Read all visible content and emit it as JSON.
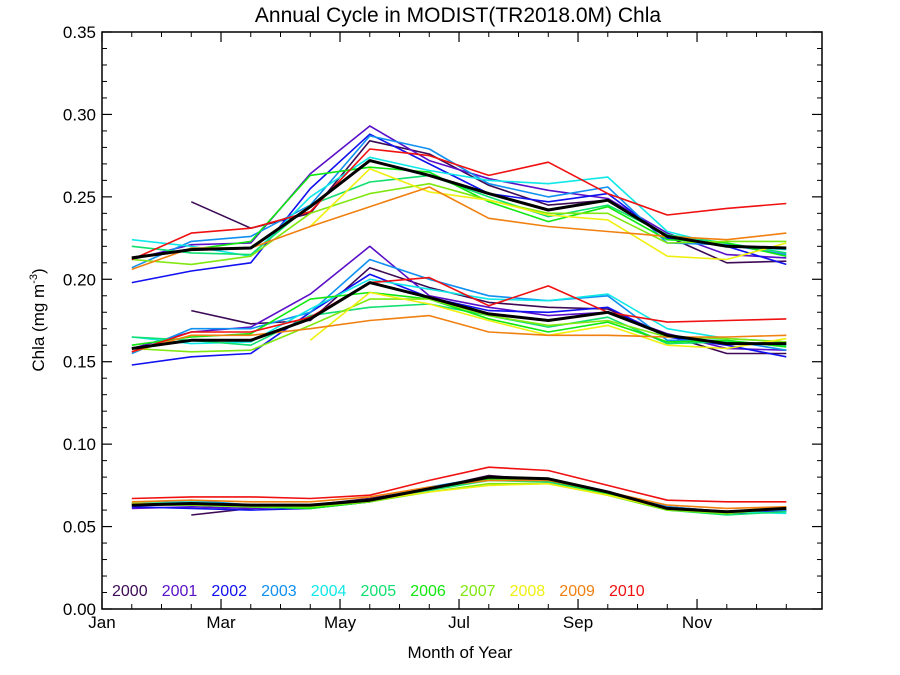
{
  "chart_data": {
    "type": "line",
    "title": "Annual Cycle in MODIST(TR2018.0M) Chla",
    "xlabel": "Month of Year",
    "ylabel": "Chla (mg m⁻³)",
    "xlim": [
      0.5,
      12.6
    ],
    "ylim": [
      0,
      0.35
    ],
    "grid": false,
    "x_ticks": [
      {
        "value": 0.5,
        "label": "Jan"
      },
      {
        "value": 2.5,
        "label": "Mar"
      },
      {
        "value": 4.5,
        "label": "May"
      },
      {
        "value": 6.5,
        "label": "Jul"
      },
      {
        "value": 8.5,
        "label": "Sep"
      },
      {
        "value": 10.5,
        "label": "Nov"
      }
    ],
    "y_ticks": [
      {
        "value": 0.0,
        "label": "0.00"
      },
      {
        "value": 0.05,
        "label": "0.05"
      },
      {
        "value": 0.1,
        "label": "0.10"
      },
      {
        "value": 0.15,
        "label": "0.15"
      },
      {
        "value": 0.2,
        "label": "0.20"
      },
      {
        "value": 0.25,
        "label": "0.25"
      },
      {
        "value": 0.3,
        "label": "0.30"
      },
      {
        "value": 0.35,
        "label": "0.35"
      }
    ],
    "legend_placement": "bottom-left",
    "x": [
      1,
      2,
      3,
      4,
      5,
      6,
      7,
      8,
      9,
      10,
      11,
      12
    ],
    "groups": [
      {
        "series": [
          {
            "name": "2000",
            "color": "#3d0a55",
            "values": [
              null,
              0.247,
              0.231,
              0.24,
              0.284,
              0.276,
              0.257,
              0.245,
              0.248,
              0.226,
              0.21,
              0.211
            ]
          },
          {
            "name": "2001",
            "color": "#5a10c8",
            "values": [
              0.212,
              0.221,
              0.222,
              0.264,
              0.293,
              0.272,
              0.261,
              0.254,
              0.249,
              0.228,
              0.215,
              0.213
            ]
          },
          {
            "name": "2002",
            "color": "#1010f0",
            "values": [
              0.198,
              0.205,
              0.21,
              0.255,
              0.288,
              0.27,
              0.252,
              0.247,
              0.252,
              0.225,
              0.22,
              0.209
            ]
          },
          {
            "name": "2003",
            "color": "#1090f0",
            "values": [
              0.207,
              0.223,
              0.226,
              0.245,
              0.287,
              0.279,
              0.258,
              0.25,
              0.256,
              0.222,
              0.221,
              0.215
            ]
          },
          {
            "name": "2004",
            "color": "#10e8e8",
            "values": [
              0.224,
              0.22,
              0.214,
              0.25,
              0.274,
              0.266,
              0.26,
              0.258,
              0.262,
              0.229,
              0.22,
              0.218
            ]
          },
          {
            "name": "2005",
            "color": "#10e070",
            "values": [
              0.22,
              0.216,
              0.215,
              0.245,
              0.259,
              0.263,
              0.25,
              0.238,
              0.245,
              0.227,
              0.222,
              0.216
            ]
          },
          {
            "name": "2006",
            "color": "#10e810",
            "values": [
              0.213,
              0.218,
              0.223,
              0.263,
              0.268,
              0.265,
              0.247,
              0.235,
              0.244,
              0.224,
              0.222,
              0.214
            ]
          },
          {
            "name": "2007",
            "color": "#80e810",
            "values": [
              0.212,
              0.209,
              0.214,
              0.24,
              0.252,
              0.258,
              0.248,
              0.24,
              0.24,
              0.222,
              0.223,
              0.223
            ]
          },
          {
            "name": "2008",
            "color": "#f0f010",
            "values": [
              null,
              null,
              null,
              0.232,
              0.267,
              0.253,
              0.248,
              0.239,
              0.236,
              0.214,
              0.212,
              0.222
            ]
          },
          {
            "name": "2009",
            "color": "#f08010",
            "values": [
              0.206,
              0.219,
              0.219,
              0.232,
              0.244,
              0.256,
              0.237,
              0.232,
              0.229,
              0.226,
              0.224,
              0.228
            ]
          },
          {
            "name": "2010",
            "color": "#f01010",
            "values": [
              0.212,
              0.228,
              0.231,
              0.241,
              0.279,
              0.275,
              0.263,
              0.271,
              0.252,
              0.239,
              0.243,
              0.246
            ]
          },
          {
            "color": "#000000",
            "values": [
              0.213,
              0.218,
              0.219,
              0.244,
              0.272,
              0.263,
              0.252,
              0.242,
              0.248,
              0.226,
              0.22,
              0.219
            ]
          }
        ]
      },
      {
        "series": [
          {
            "name": "2000",
            "color": "#3d0a55",
            "values": [
              null,
              0.181,
              0.173,
              0.175,
              0.207,
              0.195,
              0.186,
              0.183,
              0.182,
              0.166,
              0.155,
              0.155
            ]
          },
          {
            "name": "2001",
            "color": "#5a10c8",
            "values": [
              0.158,
              0.168,
              0.171,
              0.191,
              0.22,
              0.19,
              0.183,
              0.178,
              0.18,
              0.167,
              0.158,
              0.157
            ]
          },
          {
            "name": "2002",
            "color": "#1010f0",
            "values": [
              0.148,
              0.153,
              0.155,
              0.18,
              0.203,
              0.189,
              0.181,
              0.18,
              0.183,
              0.165,
              0.16,
              0.153
            ]
          },
          {
            "name": "2003",
            "color": "#1090f0",
            "values": [
              0.155,
              0.17,
              0.17,
              0.18,
              0.212,
              0.2,
              0.19,
              0.187,
              0.19,
              0.163,
              0.163,
              0.157
            ]
          },
          {
            "name": "2004",
            "color": "#10e8e8",
            "values": [
              0.165,
              0.161,
              0.162,
              0.182,
              0.2,
              0.194,
              0.188,
              0.187,
              0.191,
              0.17,
              0.164,
              0.162
            ]
          },
          {
            "name": "2005",
            "color": "#10e070",
            "values": [
              0.165,
              0.163,
              0.16,
              0.178,
              0.183,
              0.185,
              0.178,
              0.171,
              0.177,
              0.161,
              0.162,
              0.16
            ]
          },
          {
            "name": "2006",
            "color": "#10e810",
            "values": [
              0.16,
              0.165,
              0.167,
              0.188,
              0.192,
              0.188,
              0.176,
              0.168,
              0.174,
              0.162,
              0.163,
              0.159
            ]
          },
          {
            "name": "2007",
            "color": "#80e810",
            "values": [
              0.158,
              0.156,
              0.157,
              0.172,
              0.188,
              0.188,
              0.178,
              0.172,
              0.175,
              0.165,
              0.164,
              0.162
            ]
          },
          {
            "name": "2008",
            "color": "#f0f010",
            "values": [
              null,
              null,
              null,
              0.163,
              0.192,
              0.185,
              0.175,
              0.166,
              0.172,
              0.16,
              0.158,
              0.164
            ]
          },
          {
            "name": "2009",
            "color": "#f08010",
            "values": [
              0.156,
              0.166,
              0.166,
              0.17,
              0.175,
              0.178,
              0.168,
              0.166,
              0.166,
              0.165,
              0.165,
              0.166
            ]
          },
          {
            "name": "2010",
            "color": "#f01010",
            "values": [
              0.156,
              0.168,
              0.168,
              0.177,
              0.198,
              0.201,
              0.184,
              0.196,
              0.18,
              0.174,
              0.175,
              0.176
            ]
          },
          {
            "color": "#000000",
            "values": [
              0.158,
              0.163,
              0.163,
              0.176,
              0.198,
              0.189,
              0.179,
              0.175,
              0.18,
              0.166,
              0.161,
              0.161
            ]
          }
        ]
      },
      {
        "series": [
          {
            "name": "2000",
            "color": "#3d0a55",
            "values": [
              null,
              0.057,
              0.061,
              0.063,
              0.067,
              0.073,
              0.081,
              0.078,
              0.071,
              0.062,
              0.059,
              0.06
            ]
          },
          {
            "name": "2001",
            "color": "#5a10c8",
            "values": [
              0.061,
              0.062,
              0.061,
              0.062,
              0.066,
              0.073,
              0.079,
              0.078,
              0.07,
              0.061,
              0.058,
              0.06
            ]
          },
          {
            "name": "2002",
            "color": "#1010f0",
            "values": [
              0.062,
              0.061,
              0.06,
              0.061,
              0.065,
              0.072,
              0.079,
              0.077,
              0.07,
              0.061,
              0.058,
              0.059
            ]
          },
          {
            "name": "2003",
            "color": "#1090f0",
            "values": [
              0.064,
              0.066,
              0.063,
              0.062,
              0.066,
              0.074,
              0.08,
              0.079,
              0.071,
              0.062,
              0.059,
              0.06
            ]
          },
          {
            "name": "2004",
            "color": "#10e8e8",
            "values": [
              0.064,
              0.065,
              0.063,
              0.063,
              0.066,
              0.073,
              0.078,
              0.078,
              0.07,
              0.061,
              0.059,
              0.058
            ]
          },
          {
            "name": "2005",
            "color": "#10e070",
            "values": [
              0.063,
              0.063,
              0.062,
              0.061,
              0.065,
              0.072,
              0.078,
              0.077,
              0.069,
              0.06,
              0.057,
              0.059
            ]
          },
          {
            "name": "2006",
            "color": "#10e810",
            "values": [
              0.064,
              0.064,
              0.062,
              0.061,
              0.065,
              0.073,
              0.079,
              0.078,
              0.07,
              0.06,
              0.058,
              0.061
            ]
          },
          {
            "name": "2007",
            "color": "#80e810",
            "values": [
              0.063,
              0.063,
              0.062,
              0.062,
              0.065,
              0.071,
              0.076,
              0.076,
              0.069,
              0.06,
              0.058,
              0.061
            ]
          },
          {
            "name": "2008",
            "color": "#f0f010",
            "values": [
              0.064,
              0.064,
              0.063,
              0.063,
              0.066,
              0.071,
              0.075,
              0.076,
              0.069,
              0.061,
              0.059,
              0.062
            ]
          },
          {
            "name": "2009",
            "color": "#f08010",
            "values": [
              0.065,
              0.066,
              0.065,
              0.065,
              0.068,
              0.074,
              0.078,
              0.078,
              0.071,
              0.063,
              0.061,
              0.062
            ]
          },
          {
            "name": "2010",
            "color": "#f01010",
            "values": [
              0.067,
              0.068,
              0.068,
              0.067,
              0.069,
              0.078,
              0.086,
              0.084,
              0.075,
              0.066,
              0.065,
              0.065
            ]
          },
          {
            "color": "#000000",
            "values": [
              0.063,
              0.064,
              0.063,
              0.063,
              0.066,
              0.073,
              0.08,
              0.079,
              0.071,
              0.061,
              0.059,
              0.061
            ]
          }
        ]
      }
    ],
    "legend": [
      {
        "label": "2000",
        "color": "#3d0a55"
      },
      {
        "label": "2001",
        "color": "#5a10c8"
      },
      {
        "label": "2002",
        "color": "#1010f0"
      },
      {
        "label": "2003",
        "color": "#1090f0"
      },
      {
        "label": "2004",
        "color": "#10e8e8"
      },
      {
        "label": "2005",
        "color": "#10e070"
      },
      {
        "label": "2006",
        "color": "#10e810"
      },
      {
        "label": "2007",
        "color": "#80e810"
      },
      {
        "label": "2008",
        "color": "#f0f010"
      },
      {
        "label": "2009",
        "color": "#f08010"
      },
      {
        "label": "2010",
        "color": "#f01010"
      }
    ]
  }
}
